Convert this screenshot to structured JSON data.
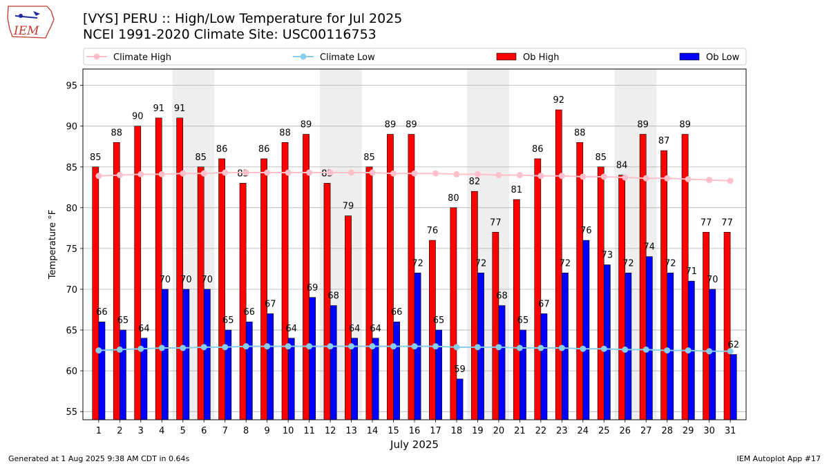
{
  "header": {
    "title_line1": "[VYS] PERU :: High/Low Temperature for Jul 2025",
    "title_line2": "NCEI 1991-2020 Climate Site: USC00116753"
  },
  "logo": {
    "text": "IEM"
  },
  "footer": {
    "generated": "Generated at 1 Aug 2025 9:38 AM CDT in 0.64s",
    "app": "IEM Autoplot App #17"
  },
  "colors": {
    "ob_high": "#ff0000",
    "ob_low": "#0000ff",
    "climate_high": "#ffc0cb",
    "climate_low": "#87ceeb",
    "weekend_shade": "#eeeeee"
  },
  "chart_data": {
    "type": "bar",
    "title": "[VYS] PERU :: High/Low Temperature for Jul 2025",
    "xlabel": "July 2025",
    "ylabel": "Temperature °F",
    "ylim": [
      54,
      97
    ],
    "yticks": [
      55,
      60,
      65,
      70,
      75,
      80,
      85,
      90,
      95
    ],
    "grid": true,
    "legend": "top",
    "categories": [
      "1",
      "2",
      "3",
      "4",
      "5",
      "6",
      "7",
      "8",
      "9",
      "10",
      "11",
      "12",
      "13",
      "14",
      "15",
      "16",
      "17",
      "18",
      "19",
      "20",
      "21",
      "22",
      "23",
      "24",
      "25",
      "26",
      "27",
      "28",
      "29",
      "30",
      "31"
    ],
    "shaded_days": [
      [
        5,
        6
      ],
      [
        12,
        13
      ],
      [
        19,
        20
      ],
      [
        26,
        27
      ]
    ],
    "series": [
      {
        "name": "Ob High",
        "kind": "bar",
        "values": [
          85,
          88,
          90,
          91,
          91,
          85,
          86,
          83,
          86,
          88,
          89,
          83,
          79,
          85,
          89,
          89,
          76,
          80,
          82,
          77,
          81,
          86,
          92,
          88,
          85,
          84,
          89,
          87,
          89,
          77,
          77
        ]
      },
      {
        "name": "Ob Low",
        "kind": "bar",
        "values": [
          66,
          65,
          64,
          70,
          70,
          70,
          65,
          66,
          67,
          64,
          69,
          68,
          64,
          64,
          66,
          72,
          65,
          59,
          72,
          68,
          65,
          67,
          72,
          76,
          73,
          72,
          74,
          72,
          71,
          70,
          62
        ]
      },
      {
        "name": "Climate High",
        "kind": "line",
        "values": [
          83.9,
          84.0,
          84.1,
          84.1,
          84.2,
          84.2,
          84.3,
          84.3,
          84.3,
          84.3,
          84.3,
          84.3,
          84.3,
          84.3,
          84.2,
          84.2,
          84.2,
          84.1,
          84.1,
          84.0,
          84.0,
          83.9,
          83.9,
          83.8,
          83.8,
          83.7,
          83.6,
          83.6,
          83.5,
          83.4,
          83.3
        ]
      },
      {
        "name": "Climate Low",
        "kind": "line",
        "values": [
          62.5,
          62.6,
          62.7,
          62.8,
          62.8,
          62.9,
          62.9,
          63.0,
          63.0,
          63.0,
          63.0,
          63.0,
          63.0,
          63.0,
          63.0,
          63.0,
          63.0,
          62.9,
          62.9,
          62.9,
          62.8,
          62.8,
          62.8,
          62.7,
          62.7,
          62.6,
          62.6,
          62.5,
          62.5,
          62.4,
          62.4
        ]
      }
    ]
  }
}
